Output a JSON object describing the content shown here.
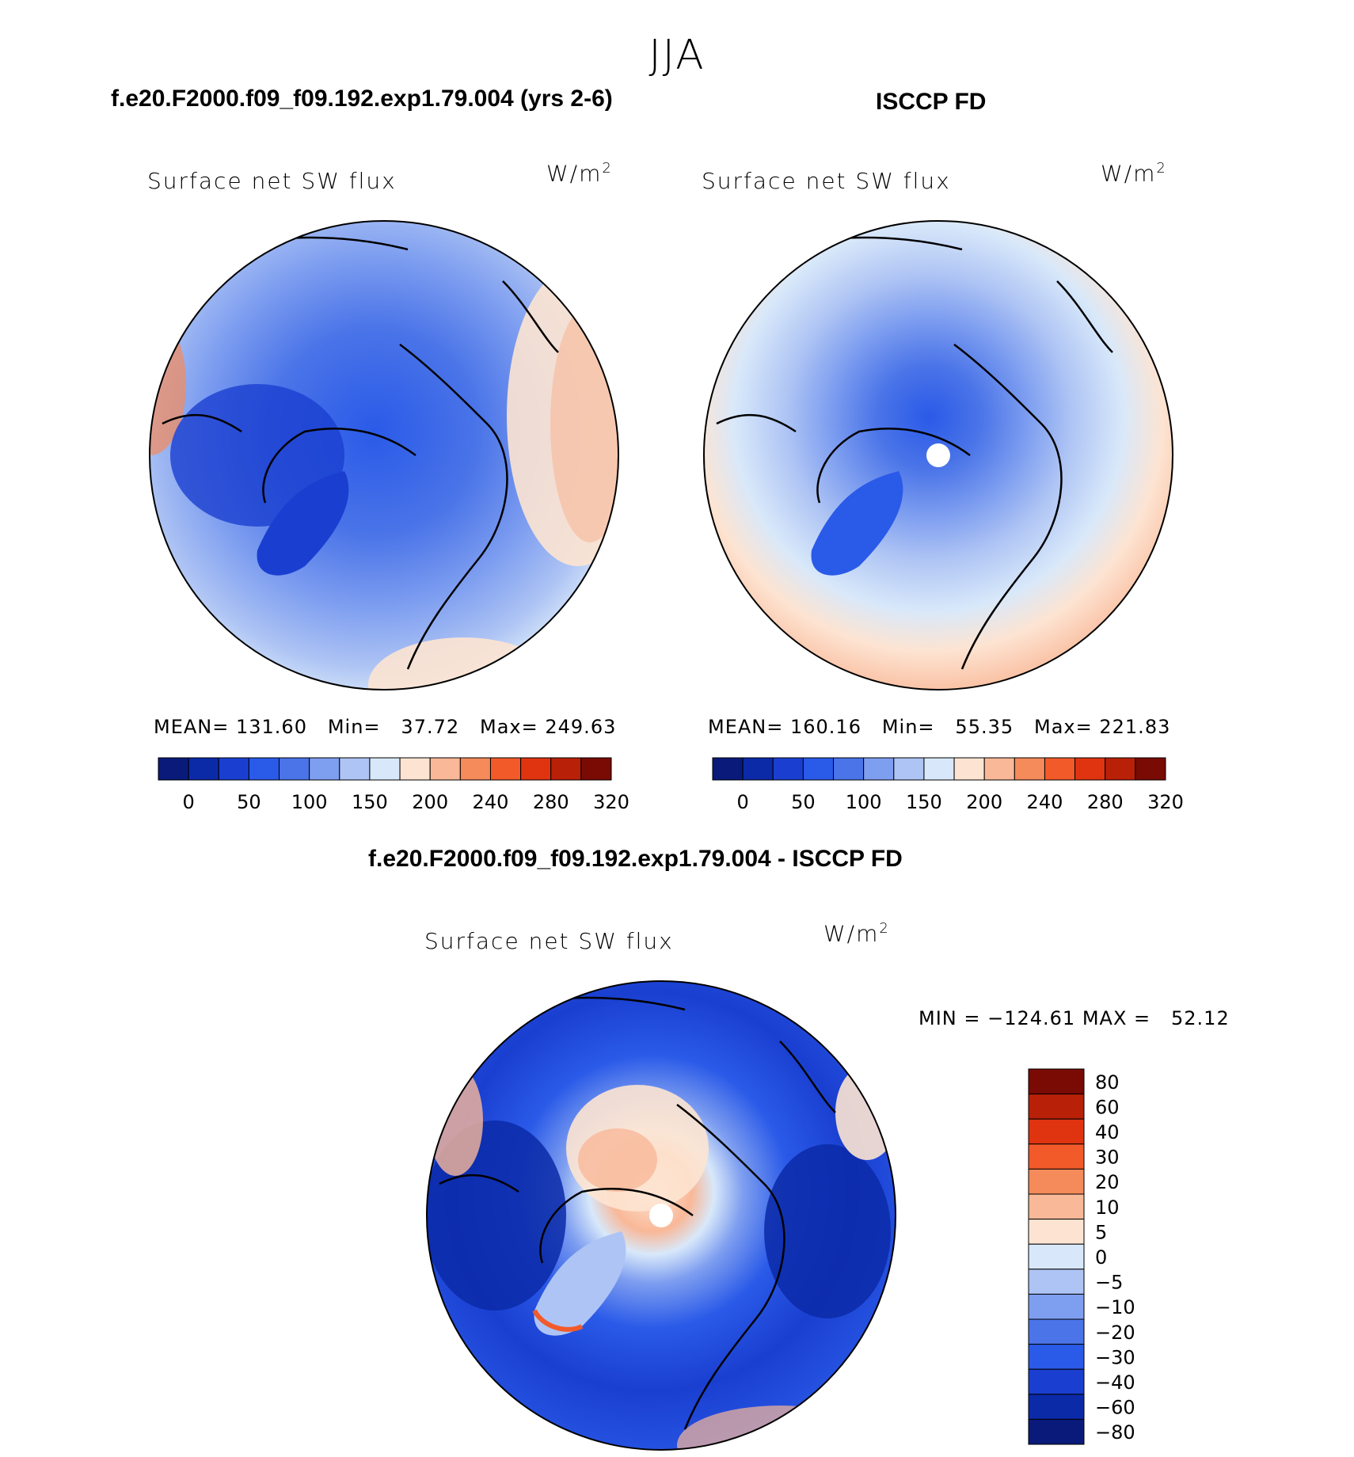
{
  "season": "JJA",
  "panels": {
    "model": {
      "heading": "f.e20.F2000.f09_f09.192.exp1.79.004 (yrs 2-6)",
      "variable": "Surface net SW flux",
      "units_base": "W/m",
      "units_exp": "2",
      "stats": "MEAN= 131.60   Min=   37.72   Max= 249.63"
    },
    "obs": {
      "heading": "ISCCP FD",
      "variable": "Surface net SW flux",
      "units_base": "W/m",
      "units_exp": "2",
      "stats": "MEAN= 160.16   Min=   55.35   Max= 221.83"
    },
    "diff": {
      "heading": "f.e20.F2000.f09_f09.192.exp1.79.004 - ISCCP FD",
      "variable": "Surface net SW flux",
      "units_base": "W/m",
      "units_exp": "2",
      "minmax": "MIN = −124.61 MAX =   52.12"
    }
  },
  "colors": {
    "abs_scale": [
      "#0a1a7a",
      "#0b2aa8",
      "#1a3fd0",
      "#2a5ae8",
      "#4a74e8",
      "#7e9ef0",
      "#aec4f4",
      "#d8e8fa",
      "#fde4d2",
      "#f9b898",
      "#f58a5a",
      "#f25a2a",
      "#e03410",
      "#b82008",
      "#7a0a04"
    ],
    "diff_scale": [
      "#0a1a7a",
      "#0b2aa8",
      "#1a3fd0",
      "#2a5ae8",
      "#4a74e8",
      "#7e9ef0",
      "#aec4f4",
      "#d8e8fa",
      "#fde4d2",
      "#f9b898",
      "#f58a5a",
      "#f25a2a",
      "#e03410",
      "#b82008",
      "#7a0a04"
    ]
  },
  "chart_data": [
    {
      "type": "heatmap",
      "title": "Surface net SW flux",
      "subtitle": "f.e20.F2000.f09_f09.192.exp1.79.004 (yrs 2-6)",
      "projection": "north polar stereographic",
      "colorbar_ticks": [
        "0",
        "50",
        "100",
        "150",
        "200",
        "240",
        "280",
        "320"
      ],
      "levels": [
        0,
        25,
        50,
        75,
        100,
        125,
        150,
        175,
        200,
        220,
        240,
        260,
        280,
        300,
        320
      ],
      "mean": 131.6,
      "min": 37.72,
      "max": 249.63
    },
    {
      "type": "heatmap",
      "title": "Surface net SW flux",
      "subtitle": "ISCCP FD",
      "projection": "north polar stereographic",
      "colorbar_ticks": [
        "0",
        "50",
        "100",
        "150",
        "200",
        "240",
        "280",
        "320"
      ],
      "levels": [
        0,
        25,
        50,
        75,
        100,
        125,
        150,
        175,
        200,
        220,
        240,
        260,
        280,
        300,
        320
      ],
      "mean": 160.16,
      "min": 55.35,
      "max": 221.83
    },
    {
      "type": "heatmap",
      "title": "Surface net SW flux",
      "subtitle": "f.e20.F2000.f09_f09.192.exp1.79.004 - ISCCP FD",
      "projection": "north polar stereographic",
      "colorbar_ticks": [
        "80",
        "60",
        "40",
        "30",
        "20",
        "10",
        "5",
        "0",
        "−5",
        "−10",
        "−20",
        "−30",
        "−40",
        "−60",
        "−80"
      ],
      "levels": [
        -80,
        -60,
        -40,
        -30,
        -20,
        -10,
        -5,
        0,
        5,
        10,
        20,
        30,
        40,
        60,
        80
      ],
      "min": -124.61,
      "max": 52.12
    }
  ]
}
